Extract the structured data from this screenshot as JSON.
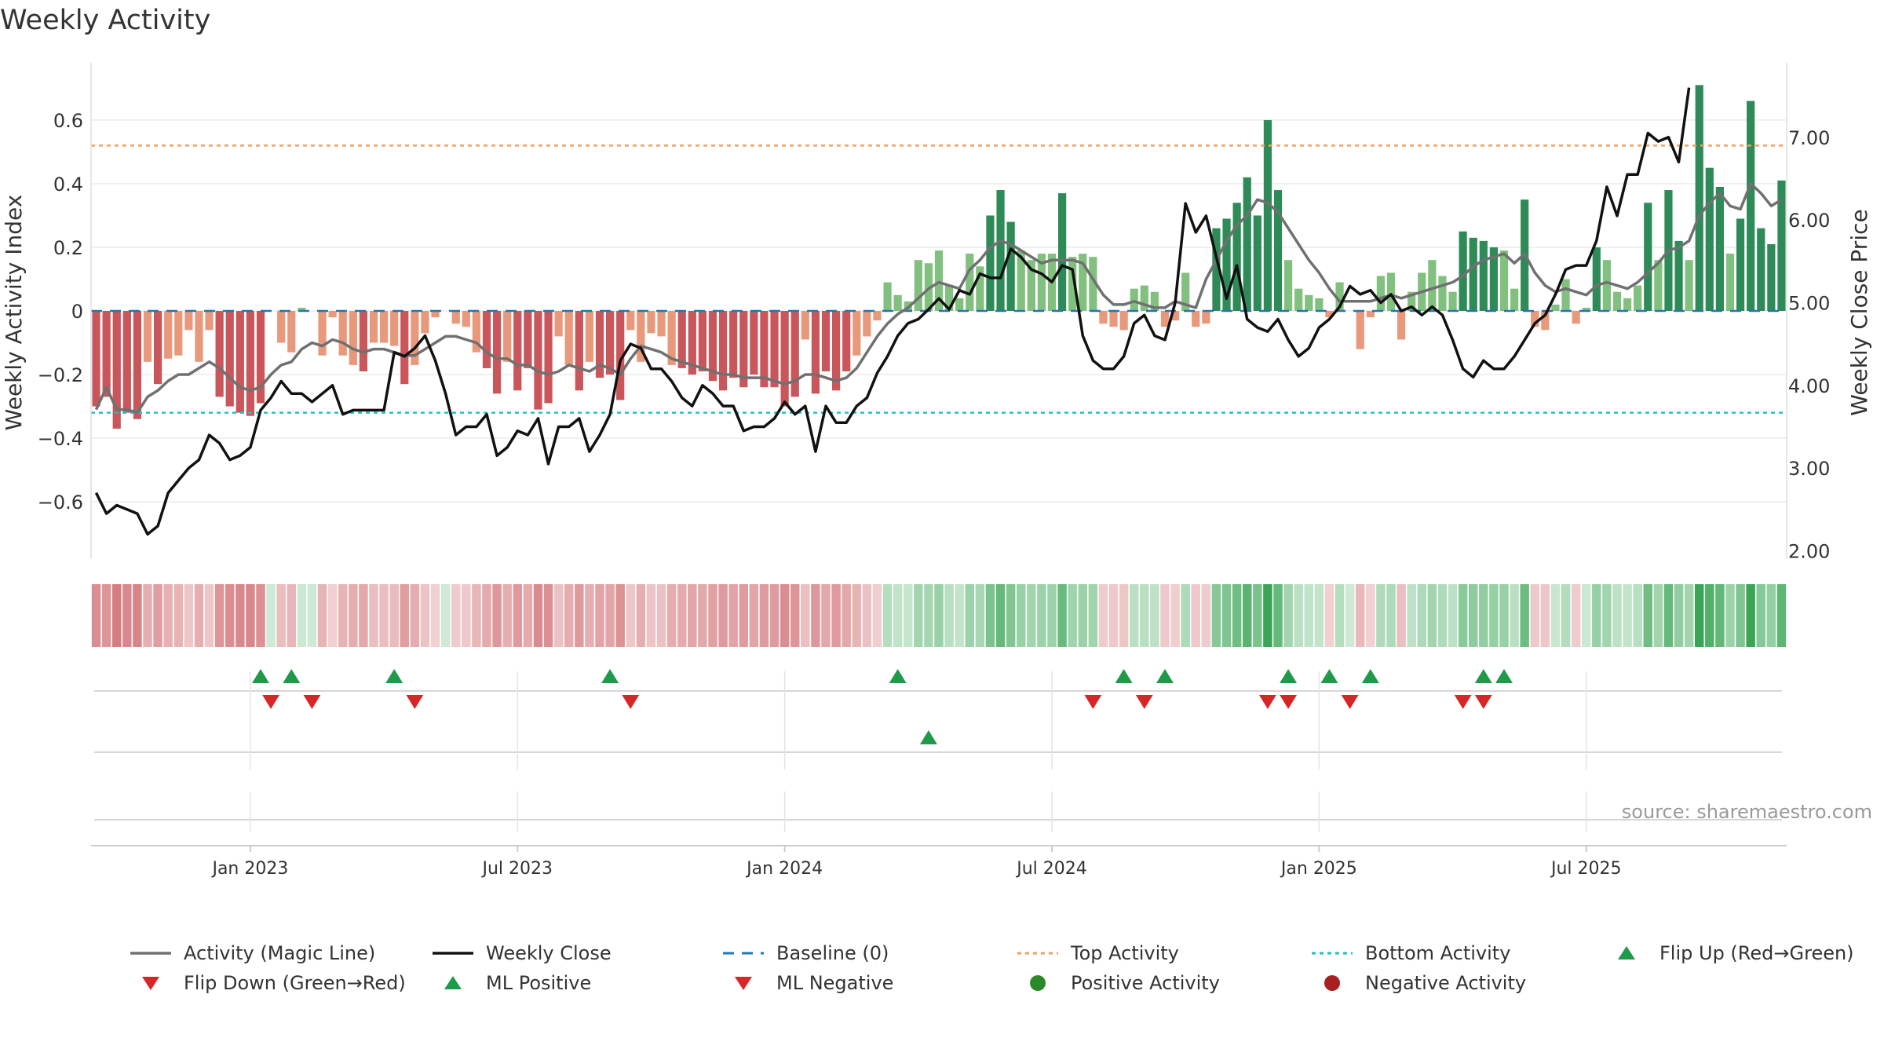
{
  "chart_data": {
    "type": "bar",
    "title": "Weekly Activity",
    "ylabel": "Weekly Activity Index",
    "y2label": "Weekly Close Price",
    "ylim": [
      -0.78,
      0.78
    ],
    "y2lim": [
      1.9,
      7.9
    ],
    "yticks": [
      "0.6",
      "0.4",
      "0.2",
      "0",
      "−0.2",
      "−0.4",
      "−0.6"
    ],
    "ytick_values": [
      0.6,
      0.4,
      0.2,
      0,
      -0.2,
      -0.4,
      -0.6
    ],
    "y2ticks": [
      "7.00",
      "6.00",
      "5.00",
      "4.00",
      "3.00",
      "2.00"
    ],
    "y2tick_values": [
      7,
      6,
      5,
      4,
      3,
      2
    ],
    "xticks": [
      "Jan 2023",
      "Jul 2023",
      "Jan 2024",
      "Jul 2024",
      "Jan 2025",
      "Jul 2025"
    ],
    "xtick_weeks": [
      15,
      41,
      67,
      93,
      119,
      145
    ],
    "top_activity": 0.52,
    "bottom_activity": -0.32,
    "baseline": 0,
    "source": "source: sharemaestro.com",
    "colors": {
      "strong_positive": "#2e8b57",
      "weak_positive": "#82c07f",
      "strong_negative": "#c9565b",
      "weak_negative": "#e8987b",
      "magic_line": "#707070",
      "close": "#111111",
      "baseline": "#1f77b4",
      "top": "#f0a060",
      "bottom": "#20c0c0",
      "flip_up": "#1f9a4a",
      "flip_down": "#d62728"
    },
    "activity": [
      -0.3,
      -0.27,
      -0.37,
      -0.32,
      -0.34,
      -0.16,
      -0.23,
      -0.15,
      -0.14,
      -0.06,
      -0.16,
      -0.06,
      -0.27,
      -0.3,
      -0.32,
      -0.33,
      -0.29,
      0,
      -0.1,
      -0.13,
      0.01,
      0,
      -0.14,
      -0.02,
      -0.14,
      -0.17,
      -0.19,
      -0.1,
      -0.1,
      -0.11,
      -0.23,
      -0.17,
      -0.07,
      -0.02,
      0,
      -0.04,
      -0.05,
      -0.13,
      -0.18,
      -0.26,
      -0.16,
      -0.25,
      -0.18,
      -0.31,
      -0.29,
      -0.08,
      -0.17,
      -0.25,
      -0.16,
      -0.21,
      -0.2,
      -0.28,
      -0.06,
      -0.16,
      -0.07,
      -0.08,
      -0.17,
      -0.18,
      -0.2,
      -0.19,
      -0.22,
      -0.25,
      -0.21,
      -0.24,
      -0.2,
      -0.24,
      -0.24,
      -0.3,
      -0.27,
      -0.09,
      -0.26,
      -0.19,
      -0.25,
      -0.19,
      -0.14,
      -0.08,
      -0.03,
      0.09,
      0.05,
      0.03,
      0.16,
      0.15,
      0.19,
      0.08,
      0.04,
      0.18,
      0.14,
      0.3,
      0.38,
      0.28,
      0.19,
      0.16,
      0.18,
      0.18,
      0.37,
      0.17,
      0.18,
      0.17,
      -0.04,
      -0.05,
      -0.06,
      0.07,
      0.08,
      0.06,
      -0.05,
      -0.03,
      0.12,
      -0.05,
      -0.04,
      0.26,
      0.29,
      0.34,
      0.42,
      0.3,
      0.6,
      0.38,
      0.16,
      0.07,
      0.05,
      0.04,
      -0.02,
      0.09,
      0,
      -0.12,
      -0.02,
      0.11,
      0.12,
      -0.09,
      0.06,
      0.12,
      0.16,
      0.11,
      0.06,
      0.25,
      0.23,
      0.22,
      0.2,
      0.19,
      0.07,
      0.35,
      -0.05,
      -0.06,
      0.02,
      0.1,
      -0.04,
      0.01,
      0.2,
      0.16,
      0.06,
      0.04,
      0.08,
      0.34,
      0.16,
      0.38,
      0.22,
      0.16,
      0.71,
      0.45,
      0.39,
      0.18,
      0.29,
      0.66,
      0.26,
      0.21,
      0.41
    ],
    "magic_line": [
      -0.31,
      -0.24,
      -0.31,
      -0.31,
      -0.32,
      -0.27,
      -0.25,
      -0.22,
      -0.2,
      -0.2,
      -0.18,
      -0.16,
      -0.18,
      -0.21,
      -0.24,
      -0.25,
      -0.24,
      -0.2,
      -0.17,
      -0.16,
      -0.12,
      -0.1,
      -0.11,
      -0.09,
      -0.1,
      -0.12,
      -0.13,
      -0.12,
      -0.12,
      -0.13,
      -0.14,
      -0.14,
      -0.12,
      -0.1,
      -0.08,
      -0.08,
      -0.09,
      -0.1,
      -0.13,
      -0.15,
      -0.15,
      -0.17,
      -0.17,
      -0.19,
      -0.2,
      -0.19,
      -0.17,
      -0.18,
      -0.19,
      -0.17,
      -0.18,
      -0.2,
      -0.15,
      -0.11,
      -0.12,
      -0.13,
      -0.15,
      -0.16,
      -0.17,
      -0.18,
      -0.19,
      -0.2,
      -0.2,
      -0.21,
      -0.21,
      -0.21,
      -0.22,
      -0.23,
      -0.22,
      -0.2,
      -0.2,
      -0.21,
      -0.22,
      -0.21,
      -0.18,
      -0.13,
      -0.08,
      -0.04,
      -0.01,
      0.01,
      0.04,
      0.07,
      0.09,
      0.08,
      0.07,
      0.13,
      0.16,
      0.2,
      0.22,
      0.21,
      0.19,
      0.17,
      0.15,
      0.16,
      0.16,
      0.16,
      0.15,
      0.1,
      0.05,
      0.02,
      0.02,
      0.03,
      0.02,
      0.01,
      0.01,
      0.03,
      0.02,
      0.01,
      0.1,
      0.16,
      0.22,
      0.27,
      0.3,
      0.35,
      0.34,
      0.31,
      0.26,
      0.21,
      0.16,
      0.12,
      0.07,
      0.03,
      0.03,
      0.03,
      0.03,
      0.04,
      0.05,
      0.04,
      0.05,
      0.06,
      0.07,
      0.08,
      0.09,
      0.11,
      0.14,
      0.16,
      0.17,
      0.18,
      0.15,
      0.18,
      0.12,
      0.08,
      0.06,
      0.07,
      0.06,
      0.05,
      0.08,
      0.09,
      0.08,
      0.07,
      0.09,
      0.12,
      0.15,
      0.19,
      0.2,
      0.22,
      0.3,
      0.34,
      0.37,
      0.33,
      0.32,
      0.4,
      0.37,
      0.33,
      0.35
    ],
    "close": [
      2.7,
      2.45,
      2.55,
      2.5,
      2.45,
      2.2,
      2.3,
      2.7,
      2.85,
      3,
      3.1,
      3.4,
      3.3,
      3.1,
      3.15,
      3.25,
      3.7,
      3.85,
      4.05,
      3.9,
      3.9,
      3.8,
      3.9,
      4,
      3.65,
      3.7,
      3.7,
      3.7,
      3.7,
      4.4,
      4.35,
      4.45,
      4.6,
      4.3,
      3.9,
      3.4,
      3.5,
      3.5,
      3.65,
      3.15,
      3.25,
      3.45,
      3.4,
      3.6,
      3.05,
      3.5,
      3.5,
      3.6,
      3.2,
      3.4,
      3.65,
      4.3,
      4.5,
      4.45,
      4.2,
      4.2,
      4.05,
      3.85,
      3.75,
      4,
      3.9,
      3.75,
      3.75,
      3.45,
      3.5,
      3.5,
      3.6,
      3.8,
      3.65,
      3.75,
      3.2,
      3.75,
      3.55,
      3.55,
      3.75,
      3.85,
      4.15,
      4.35,
      4.6,
      4.75,
      4.8,
      4.92,
      5.05,
      4.92,
      5.15,
      5.1,
      5.35,
      5.3,
      5.3,
      5.65,
      5.55,
      5.4,
      5.35,
      5.25,
      5.45,
      5.4,
      4.6,
      4.3,
      4.2,
      4.2,
      4.35,
      4.75,
      4.85,
      4.6,
      4.55,
      5,
      6.2,
      5.85,
      6.05,
      5.55,
      5.05,
      5.45,
      4.8,
      4.7,
      4.65,
      4.8,
      4.55,
      4.35,
      4.45,
      4.7,
      4.8,
      4.95,
      5.2,
      5.1,
      5.15,
      5,
      5.1,
      4.9,
      4.95,
      4.85,
      4.95,
      4.85,
      4.55,
      4.2,
      4.1,
      4.3,
      4.2,
      4.2,
      4.35,
      4.55,
      4.75,
      4.85,
      5.1,
      5.4,
      5.45,
      5.45,
      5.75,
      6.4,
      6.05,
      6.55,
      6.55,
      7.05,
      6.95,
      7,
      6.7,
      7.6
    ],
    "flip_up_weeks": [
      16,
      19,
      29,
      50,
      78,
      100,
      104,
      116,
      120,
      124,
      135,
      137
    ],
    "flip_down_weeks": [
      17,
      21,
      31,
      52,
      97,
      102,
      114,
      116,
      122,
      133,
      135
    ],
    "ml_positive_weeks": [
      81
    ],
    "legend": [
      {
        "label": "Activity (Magic Line)",
        "symbol": "line-gray"
      },
      {
        "label": "Weekly Close",
        "symbol": "line-black"
      },
      {
        "label": "Baseline (0)",
        "symbol": "dash-blue"
      },
      {
        "label": "Top Activity",
        "symbol": "dot-orange"
      },
      {
        "label": "Bottom Activity",
        "symbol": "dot-cyan"
      },
      {
        "label": "Flip Up (Red→Green)",
        "symbol": "tri-up-green"
      },
      {
        "label": "Flip Down (Green→Red)",
        "symbol": "tri-down-red"
      },
      {
        "label": "ML Positive",
        "symbol": "tri-up-green"
      },
      {
        "label": "ML Negative",
        "symbol": "tri-down-red"
      },
      {
        "label": "Positive Activity",
        "symbol": "circle-green"
      },
      {
        "label": "Negative Activity",
        "symbol": "circle-darkred"
      }
    ]
  }
}
